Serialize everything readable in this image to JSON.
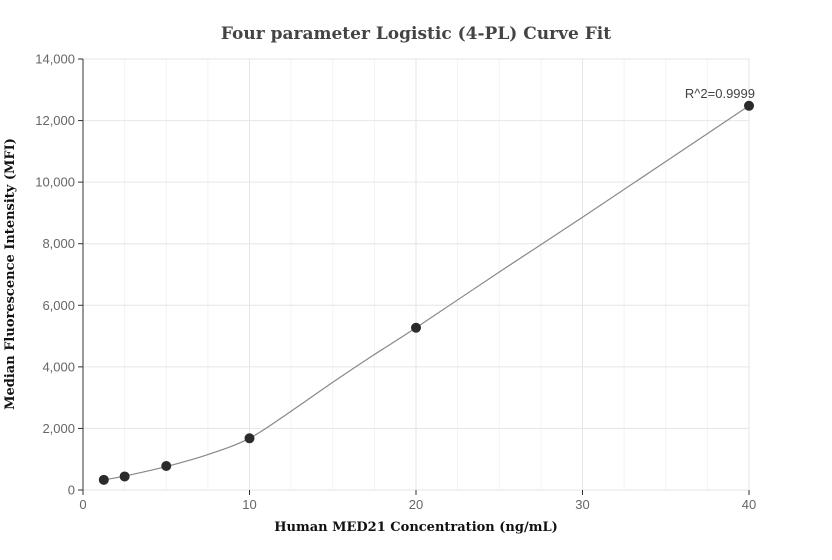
{
  "chart_data": {
    "type": "scatter",
    "title": "Four parameter Logistic (4-PL) Curve Fit",
    "xlabel": "Human MED21 Concentration (ng/mL)",
    "ylabel": "Median Fluorescence Intensity (MFI)",
    "xlim": [
      0,
      40
    ],
    "ylim": [
      0,
      14000
    ],
    "x_ticks": [
      0,
      10,
      20,
      30,
      40
    ],
    "x_tick_labels": [
      "0",
      "10",
      "20",
      "30",
      "40"
    ],
    "y_ticks": [
      0,
      2000,
      4000,
      6000,
      8000,
      10000,
      12000,
      14000
    ],
    "y_tick_labels": [
      "0",
      "2,000",
      "4,000",
      "6,000",
      "8,000",
      "10,000",
      "12,000",
      "14,000"
    ],
    "grid": true,
    "series": [
      {
        "type": "scatter",
        "x": [
          1.25,
          2.5,
          5,
          10,
          20,
          40
        ],
        "y": [
          330,
          440,
          780,
          1680,
          5270,
          12480
        ],
        "color": "#2b2b2b"
      },
      {
        "type": "line",
        "x": [
          1.25,
          2.5,
          5,
          7.5,
          10,
          12.5,
          15,
          17.5,
          20,
          25,
          30,
          35,
          40
        ],
        "y": [
          330,
          450,
          760,
          1150,
          1680,
          2560,
          3500,
          4400,
          5270,
          7080,
          8860,
          10670,
          12480
        ],
        "color": "#888888"
      }
    ],
    "annotations": [
      {
        "text": "R^2=0.9999",
        "x": 40,
        "y": 12480
      }
    ]
  }
}
